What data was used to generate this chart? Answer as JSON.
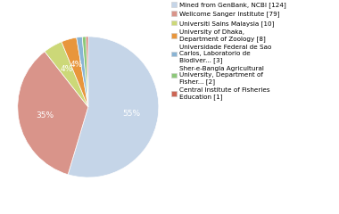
{
  "labels": [
    "Mined from GenBank, NCBI [124]",
    "Wellcome Sanger Institute [79]",
    "Universiti Sains Malaysia [10]",
    "University of Dhaka,\nDepartment of Zoology [8]",
    "Universidade Federal de Sao\nCarlos, Laboratorio de\nBiodiver... [3]",
    "Sher-e-Bangla Agricultural\nUniversity, Department of\nFisher... [2]",
    "Central Institute of Fisheries\nEducation [1]"
  ],
  "values": [
    124,
    79,
    10,
    8,
    3,
    2,
    1
  ],
  "colors": [
    "#c5d5e8",
    "#d9948a",
    "#ccd878",
    "#e8963c",
    "#8ab4d4",
    "#8dc87a",
    "#cc6655"
  ],
  "background_color": "#ffffff",
  "text_color": "#ffffff",
  "pct_fontsize": 6.5
}
